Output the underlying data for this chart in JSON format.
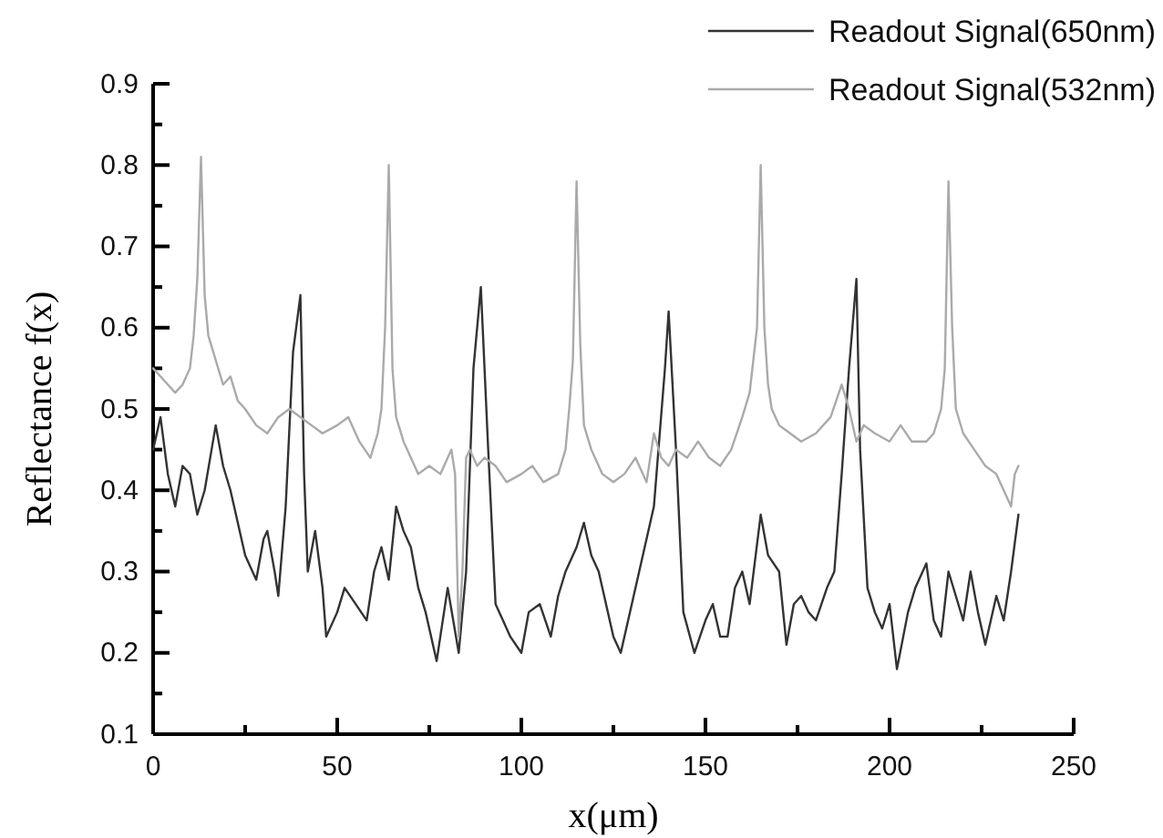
{
  "chart_data": {
    "type": "line",
    "xlabel": "x(μm)",
    "ylabel": "Reflectance f(x)",
    "xlim": [
      0,
      250
    ],
    "ylim": [
      0.1,
      0.9
    ],
    "xticks": [
      0,
      {
        "value": 25,
        "label": null
      },
      50,
      {
        "value": 75,
        "label": null
      },
      100,
      {
        "value": 125,
        "label": null
      },
      150,
      {
        "value": 175,
        "label": null
      },
      200,
      {
        "value": 225,
        "label": null
      },
      250
    ],
    "yticks": [
      0.1,
      {
        "value": 0.15,
        "label": null
      },
      0.2,
      {
        "value": 0.25,
        "label": null
      },
      0.3,
      {
        "value": 0.35,
        "label": null
      },
      0.4,
      {
        "value": 0.45,
        "label": null
      },
      0.5,
      {
        "value": 0.55,
        "label": null
      },
      0.6,
      {
        "value": 0.65,
        "label": null
      },
      0.7,
      {
        "value": 0.75,
        "label": null
      },
      0.8,
      {
        "value": 0.85,
        "label": null
      },
      0.9
    ],
    "grid": false,
    "legend": "top right",
    "marker": "none",
    "line_style": "solid",
    "series": [
      {
        "name": "Readout Signal(650nm)",
        "color": "#333333",
        "x": [
          0,
          2,
          4,
          6,
          8,
          10,
          12,
          14,
          17,
          19,
          21,
          23,
          25,
          28,
          30,
          31,
          33,
          34,
          36,
          38,
          40,
          41,
          42,
          44,
          46,
          47,
          50,
          52,
          55,
          58,
          60,
          62,
          64,
          66,
          68,
          70,
          72,
          74,
          77,
          80,
          83,
          85,
          87,
          89,
          91,
          93,
          95,
          97,
          100,
          102,
          105,
          108,
          110,
          112,
          115,
          117,
          119,
          121,
          123,
          125,
          127,
          130,
          132,
          136,
          139,
          140,
          142,
          144,
          147,
          150,
          152,
          154,
          156,
          158,
          160,
          162,
          165,
          167,
          170,
          172,
          174,
          176,
          178,
          180,
          183,
          185,
          187,
          189,
          191,
          192,
          194,
          196,
          198,
          200,
          202,
          205,
          207,
          210,
          212,
          214,
          216,
          218,
          220,
          222,
          224,
          226,
          229,
          231,
          233,
          235
        ],
        "values": [
          0.45,
          0.49,
          0.42,
          0.38,
          0.43,
          0.42,
          0.37,
          0.4,
          0.48,
          0.43,
          0.4,
          0.36,
          0.32,
          0.29,
          0.34,
          0.35,
          0.3,
          0.27,
          0.38,
          0.57,
          0.64,
          0.42,
          0.3,
          0.35,
          0.28,
          0.22,
          0.25,
          0.28,
          0.26,
          0.24,
          0.3,
          0.33,
          0.29,
          0.38,
          0.35,
          0.33,
          0.28,
          0.25,
          0.19,
          0.28,
          0.2,
          0.3,
          0.55,
          0.65,
          0.45,
          0.26,
          0.24,
          0.22,
          0.2,
          0.25,
          0.26,
          0.22,
          0.27,
          0.3,
          0.33,
          0.36,
          0.32,
          0.3,
          0.26,
          0.22,
          0.2,
          0.26,
          0.3,
          0.38,
          0.55,
          0.62,
          0.45,
          0.25,
          0.2,
          0.24,
          0.26,
          0.22,
          0.22,
          0.28,
          0.3,
          0.26,
          0.37,
          0.32,
          0.3,
          0.21,
          0.26,
          0.27,
          0.25,
          0.24,
          0.28,
          0.3,
          0.42,
          0.55,
          0.66,
          0.45,
          0.28,
          0.25,
          0.23,
          0.26,
          0.18,
          0.25,
          0.28,
          0.31,
          0.24,
          0.22,
          0.3,
          0.27,
          0.24,
          0.3,
          0.25,
          0.21,
          0.27,
          0.24,
          0.3,
          0.37
        ]
      },
      {
        "name": "Readout Signal(532nm)",
        "color": "#aaaaaa",
        "x": [
          0,
          2,
          4,
          6,
          8,
          10,
          11,
          12,
          13,
          14,
          15,
          17,
          19,
          21,
          23,
          25,
          28,
          31,
          34,
          37,
          40,
          43,
          46,
          50,
          53,
          56,
          59,
          61,
          62,
          63,
          64,
          65,
          66,
          68,
          70,
          72,
          75,
          78,
          81,
          82,
          83,
          84,
          85,
          86,
          88,
          90,
          93,
          96,
          100,
          103,
          106,
          110,
          112,
          113,
          114,
          115,
          116,
          117,
          119,
          122,
          125,
          128,
          131,
          134,
          136,
          138,
          140,
          142,
          145,
          148,
          151,
          154,
          157,
          160,
          162,
          164,
          165,
          166,
          167,
          168,
          170,
          173,
          176,
          180,
          184,
          187,
          189,
          191,
          193,
          196,
          200,
          203,
          206,
          210,
          212,
          214,
          215,
          216,
          217,
          218,
          220,
          223,
          226,
          229,
          231,
          233,
          234,
          235
        ],
        "values": [
          0.55,
          0.54,
          0.53,
          0.52,
          0.53,
          0.55,
          0.59,
          0.66,
          0.81,
          0.64,
          0.59,
          0.56,
          0.53,
          0.54,
          0.51,
          0.5,
          0.48,
          0.47,
          0.49,
          0.5,
          0.49,
          0.48,
          0.47,
          0.48,
          0.49,
          0.46,
          0.44,
          0.47,
          0.5,
          0.6,
          0.8,
          0.55,
          0.49,
          0.46,
          0.44,
          0.42,
          0.43,
          0.42,
          0.45,
          0.42,
          0.22,
          0.3,
          0.44,
          0.45,
          0.43,
          0.44,
          0.43,
          0.41,
          0.42,
          0.43,
          0.41,
          0.42,
          0.45,
          0.5,
          0.56,
          0.78,
          0.58,
          0.48,
          0.45,
          0.42,
          0.41,
          0.42,
          0.44,
          0.41,
          0.47,
          0.44,
          0.43,
          0.45,
          0.44,
          0.46,
          0.44,
          0.43,
          0.45,
          0.49,
          0.52,
          0.6,
          0.8,
          0.6,
          0.53,
          0.5,
          0.48,
          0.47,
          0.46,
          0.47,
          0.49,
          0.53,
          0.5,
          0.46,
          0.48,
          0.47,
          0.46,
          0.48,
          0.46,
          0.46,
          0.47,
          0.5,
          0.55,
          0.78,
          0.6,
          0.5,
          0.47,
          0.45,
          0.43,
          0.42,
          0.4,
          0.38,
          0.42,
          0.43
        ]
      }
    ]
  }
}
